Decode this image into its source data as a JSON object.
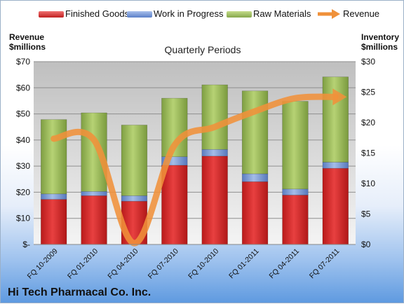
{
  "chart_data": {
    "type": "bar",
    "stacked": true,
    "title": "Quarterly Periods",
    "left_axis_title": [
      "Revenue",
      "$millions"
    ],
    "right_axis_title": [
      "Inventory",
      "$millions"
    ],
    "categories": [
      "FQ 10-2009",
      "FQ 01-2010",
      "FQ 04-2010",
      "FQ 07-2010",
      "FQ 10-2010",
      "FQ 01-2011",
      "FQ 04-2011",
      "FQ 07-2011"
    ],
    "left_ticks": [
      "$-",
      "$10",
      "$20",
      "$30",
      "$40",
      "$50",
      "$60",
      "$70"
    ],
    "right_ticks": [
      "$0",
      "$5",
      "$10",
      "$15",
      "$20",
      "$25",
      "$30"
    ],
    "ylim_left": [
      0,
      70
    ],
    "ylim_right": [
      0,
      30
    ],
    "series": [
      {
        "name": "Finished Goods",
        "axis": "right",
        "color": "#d62a2a",
        "values": [
          7.4,
          8.0,
          7.1,
          13.0,
          14.5,
          10.3,
          8.1,
          12.5
        ]
      },
      {
        "name": "Work in Progress",
        "axis": "right",
        "color": "#6d8fd0",
        "values": [
          0.9,
          0.7,
          0.9,
          1.4,
          1.1,
          1.3,
          1.0,
          1.0
        ]
      },
      {
        "name": "Raw Materials",
        "axis": "right",
        "color": "#9abb59",
        "values": [
          12.2,
          12.9,
          11.6,
          9.6,
          10.6,
          13.6,
          14.4,
          14.0
        ]
      },
      {
        "name": "Revenue",
        "axis": "left",
        "type": "line",
        "color": "#f0913a",
        "values": [
          40.5,
          40.0,
          0.5,
          38.0,
          45.0,
          51.0,
          56.0,
          56.5
        ]
      }
    ],
    "grid": true,
    "legend": "top"
  },
  "company_name": "Hi Tech Pharmacal Co. Inc."
}
